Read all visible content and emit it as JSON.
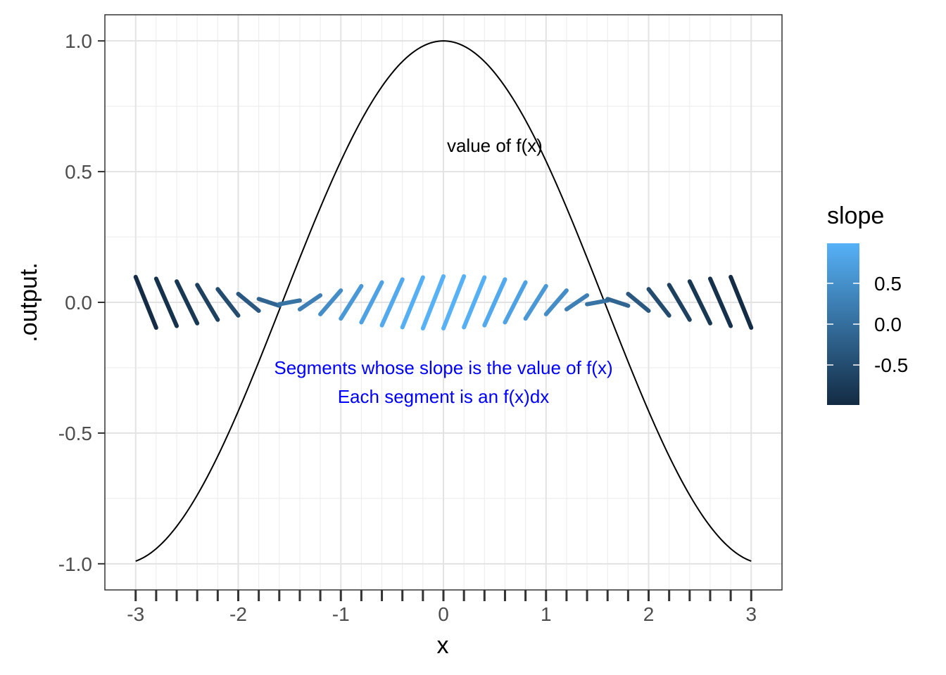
{
  "chart_data": {
    "type": "line",
    "title": "",
    "xlabel": "x",
    "ylabel": ".output.",
    "xlim": [
      -3.3,
      3.3
    ],
    "ylim": [
      -1.1,
      1.1
    ],
    "x_ticks": [
      -3,
      -2,
      -1,
      0,
      1,
      2,
      3
    ],
    "x_tick_labels": [
      "-3",
      "-2",
      "-1",
      "0",
      "1",
      "2",
      "3"
    ],
    "x_minor_ticks": [
      -2.8,
      -2.6,
      -2.4,
      -2.2,
      -1.8,
      -1.6,
      -1.4,
      -1.2,
      -0.8,
      -0.6,
      -0.4,
      -0.2,
      0.2,
      0.4,
      0.6,
      0.8,
      1.2,
      1.4,
      1.6,
      1.8,
      2.2,
      2.4,
      2.6,
      2.8
    ],
    "y_ticks": [
      -1.0,
      -0.5,
      0.0,
      0.5,
      1.0
    ],
    "y_tick_labels": [
      "-1.0",
      "-0.5",
      "0.0",
      "0.5",
      "1.0"
    ],
    "grid": true,
    "curve": {
      "function": "cos(x)",
      "x_start": -3,
      "x_end": 3,
      "color": "#000000"
    },
    "segments": {
      "x_centers": [
        -2.9,
        -2.7,
        -2.5,
        -2.3,
        -2.1,
        -1.9,
        -1.7,
        -1.5,
        -1.3,
        -1.1,
        -0.9,
        -0.7,
        -0.5,
        -0.3,
        -0.1,
        0.1,
        0.3,
        0.5,
        0.7,
        0.9,
        1.1,
        1.3,
        1.5,
        1.7,
        1.9,
        2.1,
        2.3,
        2.5,
        2.7,
        2.9
      ],
      "slopes": [
        -0.971,
        -0.904,
        -0.801,
        -0.666,
        -0.505,
        -0.323,
        -0.129,
        0.071,
        0.267,
        0.454,
        0.622,
        0.765,
        0.878,
        0.955,
        0.995,
        0.995,
        0.955,
        0.878,
        0.765,
        0.622,
        0.454,
        0.267,
        0.071,
        -0.129,
        -0.323,
        -0.505,
        -0.666,
        -0.801,
        -0.904,
        -0.971
      ],
      "dx": 0.2,
      "y_center": 0
    },
    "annotations": [
      {
        "text": "value of f(x)",
        "x": 0.5,
        "y": 0.6,
        "color": "#000000"
      },
      {
        "text": "Segments whose slope is the value of f(x)",
        "x": 0,
        "y": -0.25,
        "color": "#0000ff"
      },
      {
        "text": "Each segment is an f(x)dx",
        "x": 0,
        "y": -0.36,
        "color": "#0000ff"
      }
    ],
    "legend": {
      "title": "slope",
      "position": "right",
      "type": "colorbar",
      "range": [
        -0.99,
        0.99
      ],
      "breaks": [
        0.5,
        0.0,
        -0.5
      ],
      "break_labels": [
        "0.5",
        "0.0",
        "-0.5"
      ],
      "low_color": "#132b43",
      "high_color": "#56b1f7"
    }
  }
}
